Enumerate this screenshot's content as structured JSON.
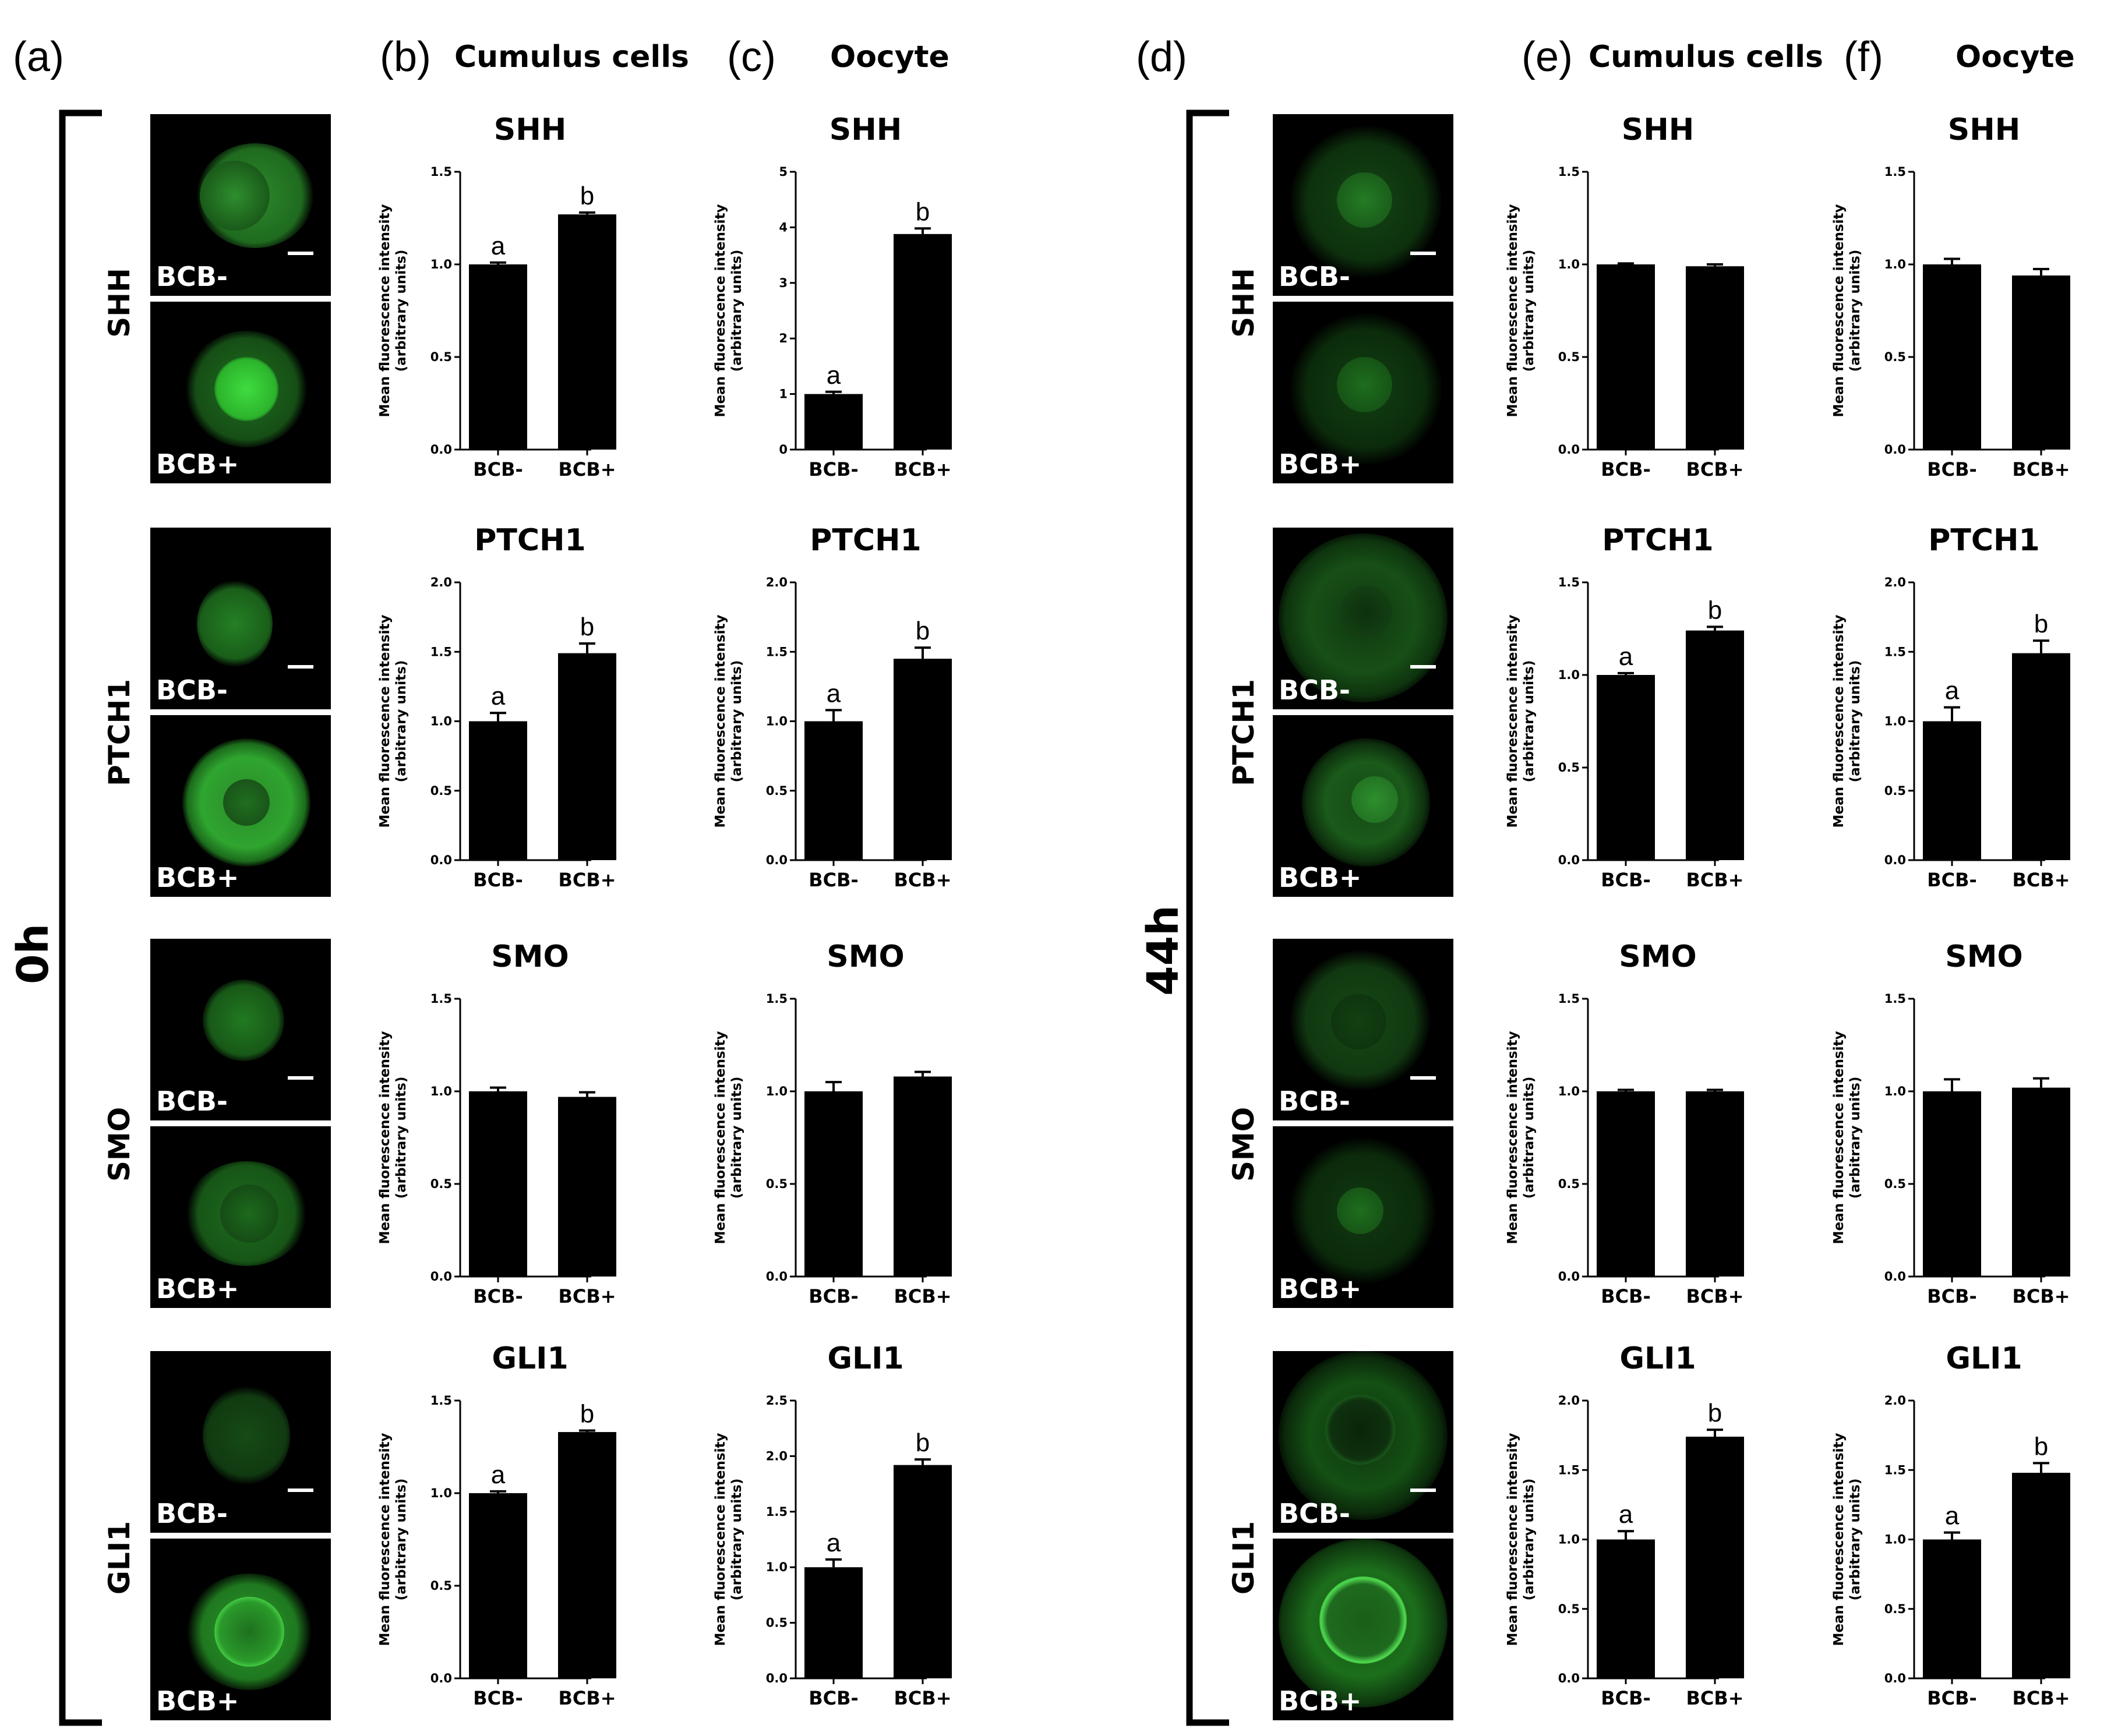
{
  "panel_letters": {
    "a": "(a)",
    "b": "(b)",
    "c": "(c)",
    "d": "(d)",
    "e": "(e)",
    "f": "(f)"
  },
  "headings": {
    "b": "Cumulus cells",
    "c": "Oocyte",
    "e": "Cumulus cells",
    "f": "Oocyte"
  },
  "time_labels": {
    "left": "0h",
    "right": "44h"
  },
  "row_labels": [
    "SHH",
    "PTCH1",
    "SMO",
    "GLI1"
  ],
  "image_tags": {
    "neg": "BCB-",
    "pos": "BCB+"
  },
  "colors": {
    "fluorescence": "#2fae2f",
    "bar": "#000000",
    "background": "#ffffff"
  },
  "chart_data": [
    {
      "id": "b-SHH",
      "type": "bar",
      "title": "SHH",
      "ylabel_line1": "Mean fluorescence intensity",
      "ylabel_line2": "(arbitrary units)",
      "categories": [
        "BCB-",
        "BCB+"
      ],
      "values": [
        1.0,
        1.27
      ],
      "errors": [
        0.01,
        0.01
      ],
      "significance": [
        "a",
        "b"
      ],
      "ylim": [
        0,
        1.5
      ],
      "yticks": [
        "0.0",
        "0.5",
        "1.0",
        "1.5"
      ]
    },
    {
      "id": "c-SHH",
      "type": "bar",
      "title": "SHH",
      "ylabel_line1": "Mean fluorescence intensity",
      "ylabel_line2": "(arbitrary units)",
      "categories": [
        "BCB-",
        "BCB+"
      ],
      "values": [
        1.0,
        3.88
      ],
      "errors": [
        0.04,
        0.1
      ],
      "significance": [
        "a",
        "b"
      ],
      "ylim": [
        0,
        5
      ],
      "yticks": [
        "0",
        "1",
        "2",
        "3",
        "4",
        "5"
      ]
    },
    {
      "id": "e-SHH",
      "type": "bar",
      "title": "SHH",
      "ylabel_line1": "Mean fluorescence intensity",
      "ylabel_line2": "(arbitrary units)",
      "categories": [
        "BCB-",
        "BCB+"
      ],
      "values": [
        1.0,
        0.99
      ],
      "errors": [
        0.005,
        0.01
      ],
      "significance": [
        "",
        ""
      ],
      "ylim": [
        0,
        1.5
      ],
      "yticks": [
        "0.0",
        "0.5",
        "1.0",
        "1.5"
      ]
    },
    {
      "id": "f-SHH",
      "type": "bar",
      "title": "SHH",
      "ylabel_line1": "Mean fluorescence intensity",
      "ylabel_line2": "(arbitrary units)",
      "categories": [
        "BCB-",
        "BCB+"
      ],
      "values": [
        1.0,
        0.94
      ],
      "errors": [
        0.03,
        0.035
      ],
      "significance": [
        "",
        ""
      ],
      "ylim": [
        0,
        1.5
      ],
      "yticks": [
        "0.0",
        "0.5",
        "1.0",
        "1.5"
      ]
    },
    {
      "id": "b-PTCH1",
      "type": "bar",
      "title": "PTCH1",
      "ylabel_line1": "Mean fluorescence intensity",
      "ylabel_line2": "(arbitrary units)",
      "categories": [
        "BCB-",
        "BCB+"
      ],
      "values": [
        1.0,
        1.49
      ],
      "errors": [
        0.06,
        0.07
      ],
      "significance": [
        "a",
        "b"
      ],
      "ylim": [
        0,
        2.0
      ],
      "yticks": [
        "0.0",
        "0.5",
        "1.0",
        "1.5",
        "2.0"
      ]
    },
    {
      "id": "c-PTCH1",
      "type": "bar",
      "title": "PTCH1",
      "ylabel_line1": "Mean fluorescence intensity",
      "ylabel_line2": "(arbitrary units)",
      "categories": [
        "BCB-",
        "BCB+"
      ],
      "values": [
        1.0,
        1.45
      ],
      "errors": [
        0.08,
        0.08
      ],
      "significance": [
        "a",
        "b"
      ],
      "ylim": [
        0,
        2.0
      ],
      "yticks": [
        "0.0",
        "0.5",
        "1.0",
        "1.5",
        "2.0"
      ]
    },
    {
      "id": "e-PTCH1",
      "type": "bar",
      "title": "PTCH1",
      "ylabel_line1": "Mean fluorescence intensity",
      "ylabel_line2": "(arbitrary units)",
      "categories": [
        "BCB-",
        "BCB+"
      ],
      "values": [
        1.0,
        1.24
      ],
      "errors": [
        0.01,
        0.02
      ],
      "significance": [
        "a",
        "b"
      ],
      "ylim": [
        0,
        1.5
      ],
      "yticks": [
        "0.0",
        "0.5",
        "1.0",
        "1.5"
      ]
    },
    {
      "id": "f-PTCH1",
      "type": "bar",
      "title": "PTCH1",
      "ylabel_line1": "Mean fluorescence intensity",
      "ylabel_line2": "(arbitrary units)",
      "categories": [
        "BCB-",
        "BCB+"
      ],
      "values": [
        1.0,
        1.49
      ],
      "errors": [
        0.1,
        0.09
      ],
      "significance": [
        "a",
        "b"
      ],
      "ylim": [
        0,
        2.0
      ],
      "yticks": [
        "0.0",
        "0.5",
        "1.0",
        "1.5",
        "2.0"
      ]
    },
    {
      "id": "b-SMO",
      "type": "bar",
      "title": "SMO",
      "ylabel_line1": "Mean fluorescence intensity",
      "ylabel_line2": "(arbitrary units)",
      "categories": [
        "BCB-",
        "BCB+"
      ],
      "values": [
        1.0,
        0.97
      ],
      "errors": [
        0.02,
        0.025
      ],
      "significance": [
        "",
        ""
      ],
      "ylim": [
        0,
        1.5
      ],
      "yticks": [
        "0.0",
        "0.5",
        "1.0",
        "1.5"
      ]
    },
    {
      "id": "c-SMO",
      "type": "bar",
      "title": "SMO",
      "ylabel_line1": "Mean fluorescence intensity",
      "ylabel_line2": "(arbitrary units)",
      "categories": [
        "BCB-",
        "BCB+"
      ],
      "values": [
        1.0,
        1.08
      ],
      "errors": [
        0.05,
        0.025
      ],
      "significance": [
        "",
        ""
      ],
      "ylim": [
        0,
        1.5
      ],
      "yticks": [
        "0.0",
        "0.5",
        "1.0",
        "1.5"
      ]
    },
    {
      "id": "e-SMO",
      "type": "bar",
      "title": "SMO",
      "ylabel_line1": "Mean fluorescence intensity",
      "ylabel_line2": "(arbitrary units)",
      "categories": [
        "BCB-",
        "BCB+"
      ],
      "values": [
        1.0,
        1.0
      ],
      "errors": [
        0.008,
        0.008
      ],
      "significance": [
        "",
        ""
      ],
      "ylim": [
        0,
        1.5
      ],
      "yticks": [
        "0.0",
        "0.5",
        "1.0",
        "1.5"
      ]
    },
    {
      "id": "f-SMO",
      "type": "bar",
      "title": "SMO",
      "ylabel_line1": "Mean fluorescence intensity",
      "ylabel_line2": "(arbitrary units)",
      "categories": [
        "BCB-",
        "BCB+"
      ],
      "values": [
        1.0,
        1.02
      ],
      "errors": [
        0.065,
        0.05
      ],
      "significance": [
        "",
        ""
      ],
      "ylim": [
        0,
        1.5
      ],
      "yticks": [
        "0.0",
        "0.5",
        "1.0",
        "1.5"
      ]
    },
    {
      "id": "b-GLI1",
      "type": "bar",
      "title": "GLI1",
      "ylabel_line1": "Mean fluorescence intensity",
      "ylabel_line2": "(arbitrary units)",
      "categories": [
        "BCB-",
        "BCB+"
      ],
      "values": [
        1.0,
        1.33
      ],
      "errors": [
        0.01,
        0.008
      ],
      "significance": [
        "a",
        "b"
      ],
      "ylim": [
        0,
        1.5
      ],
      "yticks": [
        "0.0",
        "0.5",
        "1.0",
        "1.5"
      ]
    },
    {
      "id": "c-GLI1",
      "type": "bar",
      "title": "GLI1",
      "ylabel_line1": "Mean fluorescence intensity",
      "ylabel_line2": "(arbitrary units)",
      "categories": [
        "BCB-",
        "BCB+"
      ],
      "values": [
        1.0,
        1.92
      ],
      "errors": [
        0.07,
        0.05
      ],
      "significance": [
        "a",
        "b"
      ],
      "ylim": [
        0,
        2.5
      ],
      "yticks": [
        "0.0",
        "0.5",
        "1.0",
        "1.5",
        "2.0",
        "2.5"
      ]
    },
    {
      "id": "e-GLI1",
      "type": "bar",
      "title": "GLI1",
      "ylabel_line1": "Mean fluorescence intensity",
      "ylabel_line2": "(arbitrary units)",
      "categories": [
        "BCB-",
        "BCB+"
      ],
      "values": [
        1.0,
        1.74
      ],
      "errors": [
        0.06,
        0.05
      ],
      "significance": [
        "a",
        "b"
      ],
      "ylim": [
        0,
        2.0
      ],
      "yticks": [
        "0.0",
        "0.5",
        "1.0",
        "1.5",
        "2.0"
      ]
    },
    {
      "id": "f-GLI1",
      "type": "bar",
      "title": "GLI1",
      "ylabel_line1": "Mean fluorescence intensity",
      "ylabel_line2": "(arbitrary units)",
      "categories": [
        "BCB-",
        "BCB+"
      ],
      "values": [
        1.0,
        1.48
      ],
      "errors": [
        0.05,
        0.07
      ],
      "significance": [
        "a",
        "b"
      ],
      "ylim": [
        0,
        2.0
      ],
      "yticks": [
        "0.0",
        "0.5",
        "1.0",
        "1.5",
        "2.0"
      ]
    }
  ]
}
